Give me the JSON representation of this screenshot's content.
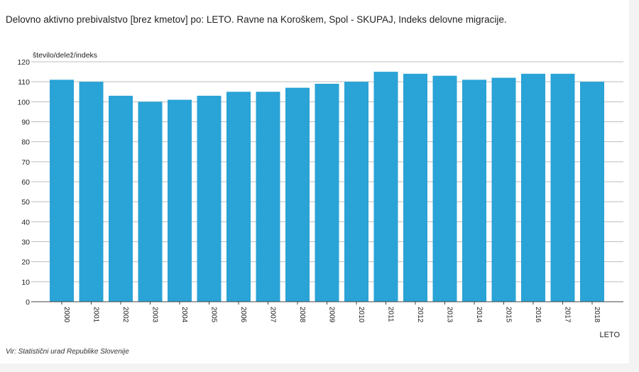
{
  "page": {
    "title": "Delovno aktivno prebivalstvo [brez kmetov] po: LETO. Ravne na Koroškem, Spol - SKUPAJ, Indeks delovne migracije.",
    "source": "Vir: Statistični urad Republike Slovenije"
  },
  "chart_data": {
    "type": "bar",
    "title": "Delovno aktivno prebivalstvo [brez kmetov] po: LETO. Ravne na Koroškem, Spol - SKUPAJ, Indeks delovne migracije.",
    "xlabel": "LETO",
    "ylabel": "število/delež/indeks",
    "ylim": [
      0,
      120
    ],
    "yticks": [
      "0",
      "10",
      "20",
      "30",
      "40",
      "50",
      "60",
      "70",
      "80",
      "90",
      "100",
      "110",
      "120"
    ],
    "grid": true,
    "bar_color": "#2aa3d6",
    "categories": [
      "2000",
      "2001",
      "2002",
      "2003",
      "2004",
      "2005",
      "2006",
      "2007",
      "2008",
      "2009",
      "2010",
      "2011",
      "2012",
      "2013",
      "2014",
      "2015",
      "2016",
      "2017",
      "2018"
    ],
    "values": [
      111,
      110,
      103,
      100,
      101,
      103,
      105,
      105,
      107,
      109,
      110,
      115,
      114,
      113,
      111,
      112,
      114,
      114,
      110
    ]
  }
}
